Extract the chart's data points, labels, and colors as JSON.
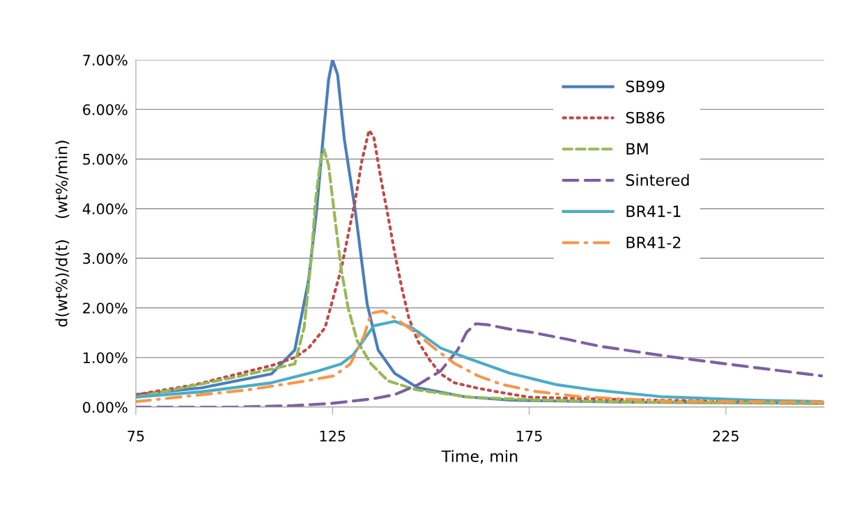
{
  "chart_data": {
    "type": "line",
    "xlabel": "Time, min",
    "ylabel": "d(wt%)/d(t)    (wt%/min)",
    "xlim": [
      75,
      250
    ],
    "xticks": [
      75,
      125,
      175,
      225
    ],
    "ylim": [
      0,
      7
    ],
    "yticks": [
      {
        "value": 0,
        "label": "0.00%"
      },
      {
        "value": 1,
        "label": "1.00%"
      },
      {
        "value": 2,
        "label": "2.00%"
      },
      {
        "value": 3,
        "label": "3.00%"
      },
      {
        "value": 4,
        "label": "4.00%"
      },
      {
        "value": 5,
        "label": "5.00%"
      },
      {
        "value": 6,
        "label": "6.00%"
      },
      {
        "value": 7,
        "label": "7.00%"
      }
    ],
    "grid": "y",
    "legend": "top right",
    "marker": "none",
    "series": [
      {
        "name": "SB99",
        "color": "#4a7ebb",
        "line_style": "solid",
        "x": [
          75,
          91.8,
          109.5,
          115.4,
          118.9,
          121,
          122.8,
          124,
          125,
          126.3,
          128,
          130.8,
          133.8,
          136.6,
          140.8,
          146.7,
          158.5,
          170.2,
          200,
          250
        ],
        "values": [
          0.25,
          0.39,
          0.67,
          1.15,
          2.55,
          4.0,
          5.6,
          6.6,
          7.0,
          6.7,
          5.4,
          3.95,
          2.08,
          1.15,
          0.68,
          0.39,
          0.21,
          0.14,
          0.1,
          0.08
        ]
      },
      {
        "name": "SB86",
        "color": "#be4b48",
        "line_style": "dotted",
        "x": [
          75,
          90,
          100,
          110,
          115.4,
          118.9,
          123.1,
          125.4,
          127.2,
          129,
          130.8,
          132.5,
          134.3,
          135.5,
          137.3,
          139.1,
          140.8,
          142.6,
          144.4,
          146.7,
          149.7,
          152.5,
          156,
          162,
          166.7,
          175,
          200,
          250
        ],
        "values": [
          0.25,
          0.45,
          0.65,
          0.85,
          1.0,
          1.19,
          1.6,
          2.27,
          2.78,
          3.48,
          4.18,
          4.98,
          5.58,
          5.44,
          4.6,
          3.86,
          3.11,
          2.41,
          1.8,
          1.33,
          0.95,
          0.67,
          0.49,
          0.38,
          0.31,
          0.2,
          0.15,
          0.08
        ]
      },
      {
        "name": "BM",
        "color": "#98b954",
        "line_style": "dashed",
        "x": [
          75,
          100,
          115.4,
          117.8,
          119.6,
          120.7,
          122,
          122.8,
          124,
          125.4,
          127.2,
          129,
          131.3,
          134.8,
          139.1,
          146.2,
          160,
          175,
          200,
          250
        ],
        "values": [
          0.2,
          0.6,
          0.87,
          1.61,
          3.0,
          4.18,
          5.0,
          5.2,
          4.88,
          3.95,
          2.78,
          1.99,
          1.33,
          0.87,
          0.53,
          0.35,
          0.2,
          0.15,
          0.1,
          0.07
        ]
      },
      {
        "name": "Sintered",
        "color": "#7d60a0",
        "line_style": "longdash",
        "x": [
          75,
          100,
          115,
          124.2,
          135.5,
          140.8,
          146.7,
          152.5,
          156.8,
          159.1,
          161.4,
          164.4,
          170.2,
          176.2,
          185.1,
          192.7,
          210.4,
          228.1,
          249.3
        ],
        "values": [
          0.0,
          0.0,
          0.03,
          0.07,
          0.17,
          0.25,
          0.45,
          0.73,
          1.15,
          1.51,
          1.68,
          1.66,
          1.57,
          1.5,
          1.36,
          1.23,
          1.02,
          0.84,
          0.63
        ]
      },
      {
        "name": "BR41-1",
        "color": "#4bacc6",
        "line_style": "solid",
        "x": [
          75,
          91.8,
          109.5,
          121.4,
          127.2,
          130.2,
          133.1,
          135.5,
          140.8,
          144.9,
          146.7,
          152.5,
          158.5,
          170.2,
          182.1,
          190.9,
          208.6,
          232.2,
          249.3
        ],
        "values": [
          0.2,
          0.31,
          0.49,
          0.73,
          0.87,
          1.05,
          1.37,
          1.64,
          1.73,
          1.61,
          1.52,
          1.19,
          1.01,
          0.68,
          0.45,
          0.35,
          0.21,
          0.14,
          0.11
        ]
      },
      {
        "name": "BR41-2",
        "color": "#f79646",
        "line_style": "dashdot",
        "x": [
          75,
          103.7,
          118.4,
          125.4,
          129.5,
          131.3,
          133,
          134.8,
          137.8,
          140.8,
          144.9,
          151.5,
          156,
          162,
          167.9,
          176.2,
          187.9,
          210,
          250
        ],
        "values": [
          0.11,
          0.35,
          0.53,
          0.63,
          0.87,
          1.15,
          1.43,
          1.89,
          1.94,
          1.8,
          1.57,
          1.15,
          0.88,
          0.63,
          0.46,
          0.32,
          0.21,
          0.12,
          0.1
        ]
      }
    ]
  }
}
